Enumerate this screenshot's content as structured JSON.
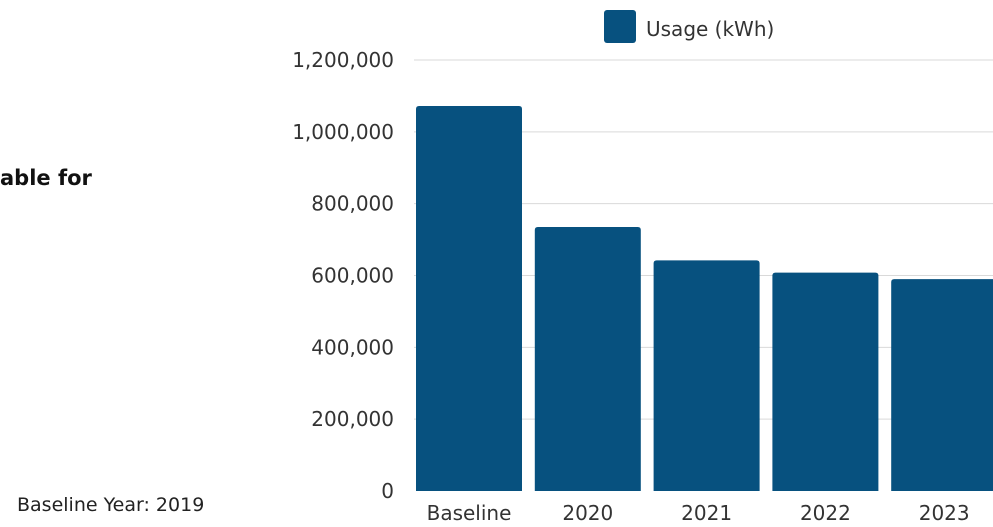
{
  "left_panel": {
    "heading_fragment": "able for",
    "baseline_note": "Baseline Year: 2019"
  },
  "chart_data": {
    "type": "bar",
    "categories": [
      "Baseline",
      "2020",
      "2021",
      "2022",
      "2023"
    ],
    "series": [
      {
        "name": "Usage (kWh)",
        "values": [
          1072000,
          735000,
          642000,
          608000,
          590000
        ],
        "color": "#07517f"
      }
    ],
    "ylim": [
      0,
      1200000
    ],
    "yticks": [
      0,
      200000,
      400000,
      600000,
      800000,
      1000000,
      1200000
    ],
    "ytick_labels": [
      "0",
      "200,000",
      "400,000",
      "600,000",
      "800,000",
      "1,000,000",
      "1,200,000"
    ],
    "grid": true,
    "legend_position": "top-center",
    "gridline_color": "#d9d9d9"
  }
}
